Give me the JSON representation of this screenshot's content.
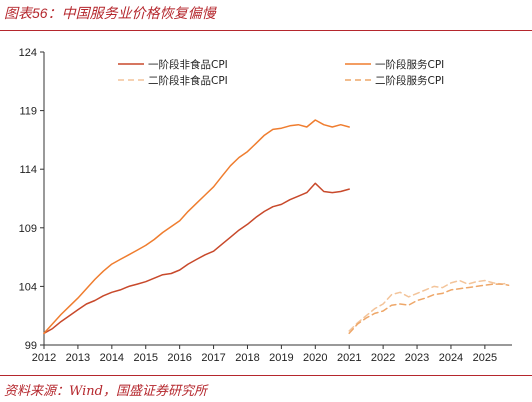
{
  "title_prefix": "图表",
  "title_number": "56",
  "title_text": "：中国服务业价格恢复偏慢",
  "source_text": "资料来源：Wind，国盛证券研究所",
  "colors": {
    "frame": "#b5272d",
    "phase1_nonfood": "#c8492b",
    "phase1_services": "#ef7d2f",
    "phase2_nonfood": "#f3c49a",
    "phase2_services": "#eea769"
  },
  "chart_data": {
    "type": "line",
    "xlim": [
      2012,
      2025.8
    ],
    "ylim": [
      99,
      124
    ],
    "x_ticks": [
      2012,
      2013,
      2014,
      2015,
      2016,
      2017,
      2018,
      2019,
      2020,
      2021,
      2022,
      2023,
      2024,
      2025
    ],
    "y_ticks": [
      99,
      104,
      109,
      114,
      119,
      124
    ],
    "legend_placement": "top",
    "series": [
      {
        "name": "一阶段非食品CPI",
        "dash": "solid",
        "color": "#c8492b",
        "x": [
          2012.0,
          2012.25,
          2012.5,
          2012.75,
          2013.0,
          2013.25,
          2013.5,
          2013.75,
          2014.0,
          2014.25,
          2014.5,
          2014.75,
          2015.0,
          2015.25,
          2015.5,
          2015.75,
          2016.0,
          2016.25,
          2016.5,
          2016.75,
          2017.0,
          2017.25,
          2017.5,
          2017.75,
          2018.0,
          2018.25,
          2018.5,
          2018.75,
          2019.0,
          2019.25,
          2019.5,
          2019.75,
          2020.0,
          2020.25,
          2020.5,
          2020.75,
          2021.0
        ],
        "y": [
          100.0,
          100.4,
          101.0,
          101.5,
          102.0,
          102.5,
          102.8,
          103.2,
          103.5,
          103.7,
          104.0,
          104.2,
          104.4,
          104.7,
          105.0,
          105.1,
          105.4,
          105.9,
          106.3,
          106.7,
          107.0,
          107.6,
          108.2,
          108.8,
          109.3,
          109.9,
          110.4,
          110.8,
          111.0,
          111.4,
          111.7,
          112.0,
          112.8,
          112.1,
          112.0,
          112.1,
          112.3
        ]
      },
      {
        "name": "一阶段服务CPI",
        "dash": "solid",
        "color": "#ef7d2f",
        "x": [
          2012.0,
          2012.25,
          2012.5,
          2012.75,
          2013.0,
          2013.25,
          2013.5,
          2013.75,
          2014.0,
          2014.25,
          2014.5,
          2014.75,
          2015.0,
          2015.25,
          2015.5,
          2015.75,
          2016.0,
          2016.25,
          2016.5,
          2016.75,
          2017.0,
          2017.25,
          2017.5,
          2017.75,
          2018.0,
          2018.25,
          2018.5,
          2018.75,
          2019.0,
          2019.25,
          2019.5,
          2019.75,
          2020.0,
          2020.25,
          2020.5,
          2020.75,
          2021.0
        ],
        "y": [
          100.0,
          100.8,
          101.6,
          102.3,
          103.0,
          103.8,
          104.6,
          105.3,
          105.9,
          106.3,
          106.7,
          107.1,
          107.5,
          108.0,
          108.6,
          109.1,
          109.6,
          110.4,
          111.1,
          111.8,
          112.5,
          113.4,
          114.3,
          115.0,
          115.5,
          116.2,
          116.9,
          117.4,
          117.5,
          117.7,
          117.8,
          117.6,
          118.2,
          117.8,
          117.6,
          117.8,
          117.6
        ]
      },
      {
        "name": "二阶段非食品CPI",
        "dash": "dashed",
        "color": "#f3c49a",
        "x": [
          2021.0,
          2021.25,
          2021.5,
          2021.75,
          2022.0,
          2022.25,
          2022.5,
          2022.75,
          2023.0,
          2023.25,
          2023.5,
          2023.75,
          2024.0,
          2024.25,
          2024.5,
          2024.75,
          2025.0,
          2025.25,
          2025.5,
          2025.7
        ],
        "y": [
          100.2,
          100.9,
          101.5,
          102.1,
          102.5,
          103.3,
          103.5,
          103.1,
          103.4,
          103.7,
          104.0,
          103.9,
          104.3,
          104.5,
          104.2,
          104.4,
          104.5,
          104.3,
          104.2,
          104.3
        ]
      },
      {
        "name": "二阶段服务CPI",
        "dash": "dashed",
        "color": "#eea769",
        "x": [
          2021.0,
          2021.25,
          2021.5,
          2021.75,
          2022.0,
          2022.25,
          2022.5,
          2022.75,
          2023.0,
          2023.25,
          2023.5,
          2023.75,
          2024.0,
          2024.25,
          2024.5,
          2024.75,
          2025.0,
          2025.25,
          2025.5,
          2025.7
        ],
        "y": [
          100.0,
          100.8,
          101.3,
          101.7,
          101.9,
          102.4,
          102.5,
          102.4,
          102.8,
          103.0,
          103.3,
          103.4,
          103.7,
          103.8,
          103.9,
          104.0,
          104.1,
          104.2,
          104.2,
          104.1
        ]
      }
    ]
  }
}
